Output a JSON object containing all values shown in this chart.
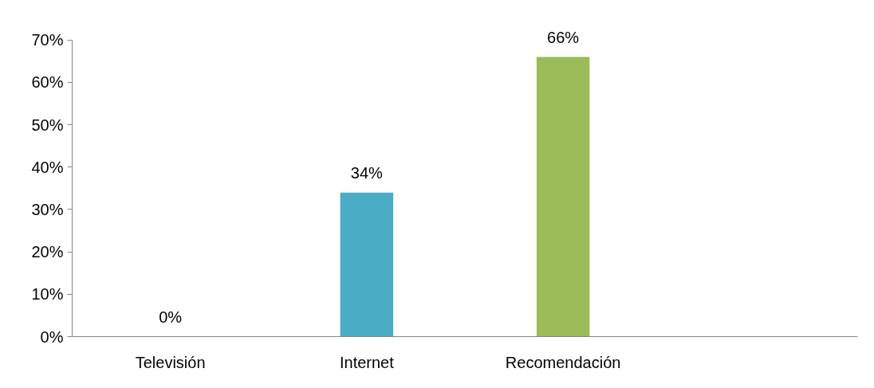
{
  "chart_data": {
    "type": "bar",
    "categories": [
      "Televisión",
      "Internet",
      "Recomendación",
      null
    ],
    "values": [
      0,
      34,
      66,
      null
    ],
    "colors": [
      "#4f81bd",
      "#4bacc6",
      "#9bbb59",
      "#4f81bd"
    ],
    "value_labels": [
      "0%",
      "34%",
      "66%",
      null
    ],
    "ylim": [
      0,
      70
    ],
    "yticks": [
      {
        "value": 0,
        "label": "0%"
      },
      {
        "value": 10,
        "label": "10%"
      },
      {
        "value": 20,
        "label": "20%"
      },
      {
        "value": 30,
        "label": "30%"
      },
      {
        "value": 40,
        "label": "40%"
      },
      {
        "value": 50,
        "label": "50%"
      },
      {
        "value": 60,
        "label": "60%"
      },
      {
        "value": 70,
        "label": "70%"
      }
    ],
    "grid": false
  }
}
